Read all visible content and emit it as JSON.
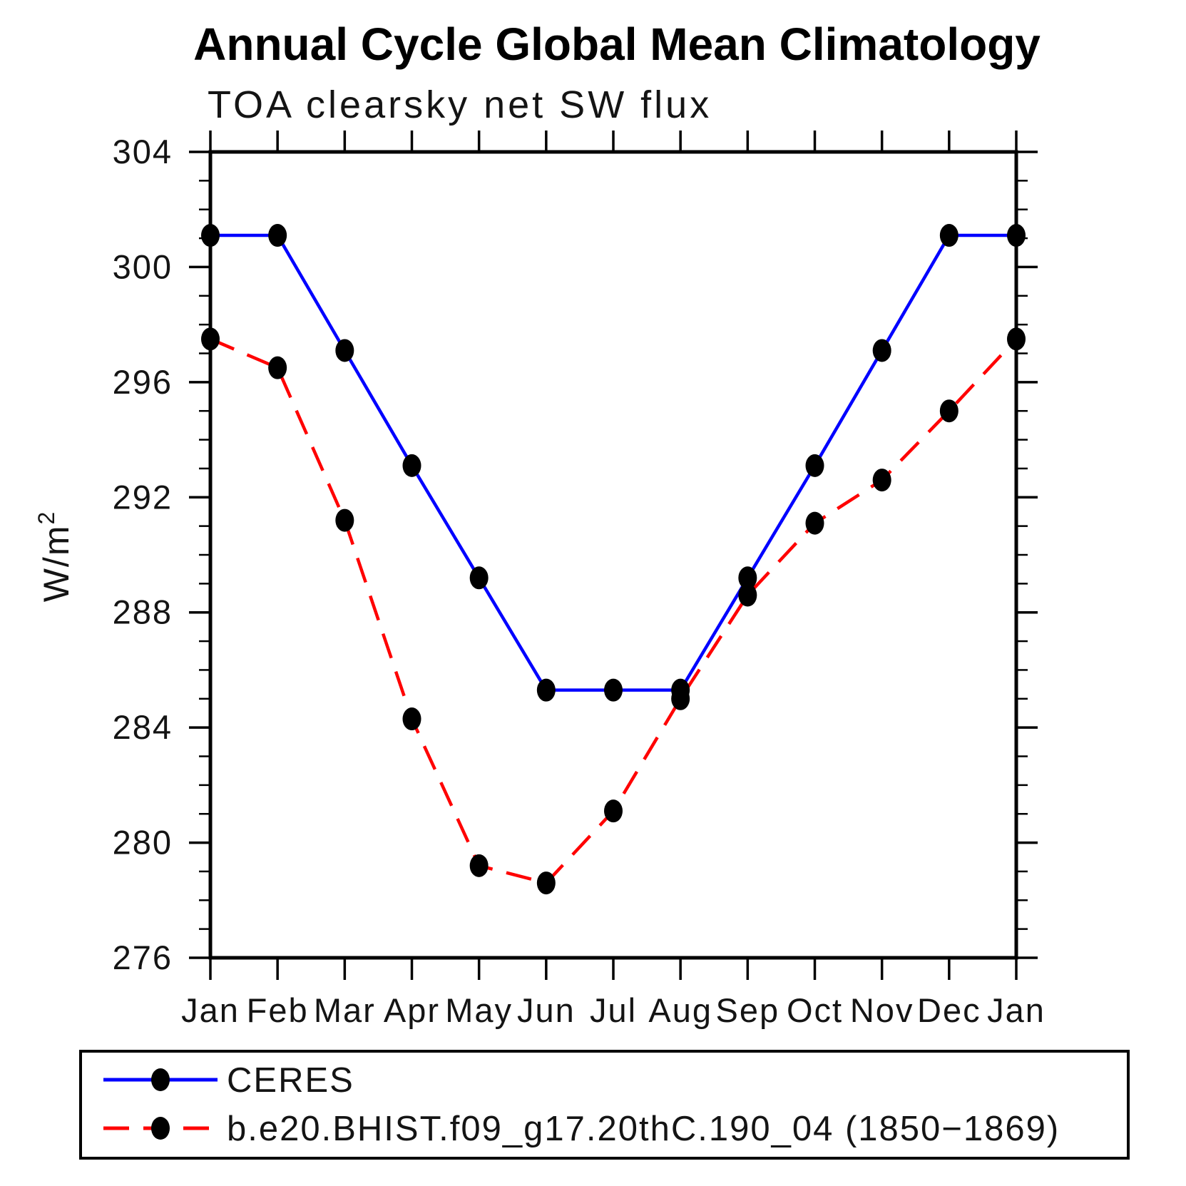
{
  "header": {
    "title": "Annual Cycle Global Mean Climatology",
    "subtitle": "TOA clearsky net SW flux"
  },
  "chart_data": {
    "type": "line",
    "title": "Annual Cycle Global Mean Climatology",
    "subtitle": "TOA clearsky net SW flux",
    "ylabel": "W/m²",
    "ylabel_base": "W/m",
    "ylabel_exp": "2",
    "x_tick_labels": [
      "Jan",
      "Feb",
      "Mar",
      "Apr",
      "May",
      "Jun",
      "Jul",
      "Aug",
      "Sep",
      "Oct",
      "Nov",
      "Dec",
      "Jan"
    ],
    "y_ticks": [
      276,
      280,
      284,
      288,
      292,
      296,
      300,
      304
    ],
    "y_minor_step": 1,
    "ylim": [
      276,
      304
    ],
    "grid": false,
    "legend_position": "bottom-left-box",
    "marker": "black-dot",
    "series": [
      {
        "name": "CERES",
        "color": "#0000ff",
        "style": "solid",
        "values": [
          301.1,
          301.1,
          297.1,
          293.1,
          289.2,
          285.3,
          285.3,
          285.3,
          289.2,
          293.1,
          297.1,
          301.1,
          301.1
        ]
      },
      {
        "name": "b.e20.BHIST.f09_g17.20thC.190_04 (1850−1869)",
        "color": "#ff0000",
        "style": "dashed",
        "values": [
          297.5,
          296.5,
          291.2,
          284.3,
          279.2,
          278.6,
          281.1,
          285.0,
          288.6,
          291.1,
          292.6,
          295.0,
          297.5
        ]
      }
    ],
    "colors": {
      "axis": "#000000",
      "marker": "#000000",
      "text": "#000000",
      "background": "#ffffff"
    }
  }
}
